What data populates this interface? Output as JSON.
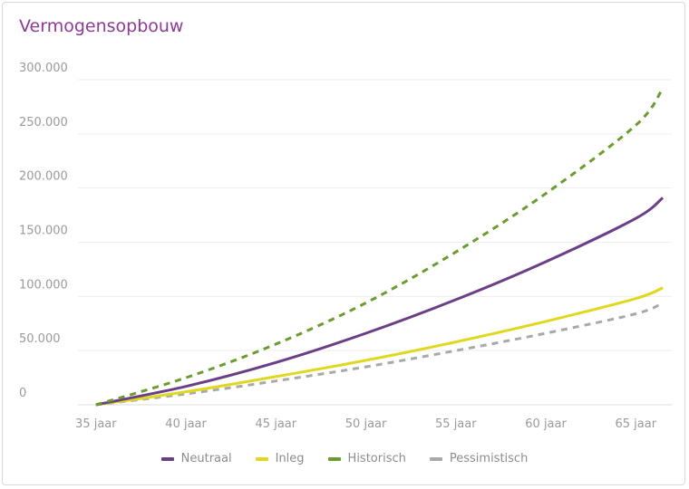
{
  "chart_data": {
    "type": "line",
    "title": "Vermogensopbouw",
    "x": [
      35,
      40,
      45,
      50,
      55,
      60,
      65,
      66.5
    ],
    "xticks": [
      35,
      40,
      45,
      50,
      55,
      60,
      65
    ],
    "xtick_labels": [
      "35 jaar",
      "40 jaar",
      "45 jaar",
      "50 jaar",
      "55 jaar",
      "60 jaar",
      "65 jaar"
    ],
    "yticks": [
      0,
      50000,
      100000,
      150000,
      200000,
      250000,
      300000
    ],
    "ytick_labels": [
      "0",
      "50.000",
      "100.000",
      "150.000",
      "200.000",
      "250.000",
      "300.000"
    ],
    "ylim": [
      0,
      300000
    ],
    "xlim": [
      34,
      67
    ],
    "grid": true,
    "legend_position": "bottom",
    "series": [
      {
        "name": "Neutraal",
        "color": "#6b3f87",
        "dash": false,
        "values": [
          0,
          17000,
          39000,
          66000,
          97000,
          132000,
          172000,
          191000
        ]
      },
      {
        "name": "Inleg",
        "color": "#e0d81f",
        "dash": false,
        "values": [
          0,
          12000,
          26000,
          41000,
          58000,
          77000,
          98000,
          108000
        ]
      },
      {
        "name": "Historisch",
        "color": "#6a9c2e",
        "dash": true,
        "values": [
          0,
          25000,
          56000,
          94000,
          141000,
          195000,
          258000,
          292000
        ]
      },
      {
        "name": "Pessimistisch",
        "color": "#a9a9a9",
        "dash": true,
        "values": [
          0,
          10000,
          22000,
          35000,
          50000,
          66000,
          84000,
          94000
        ]
      }
    ]
  }
}
